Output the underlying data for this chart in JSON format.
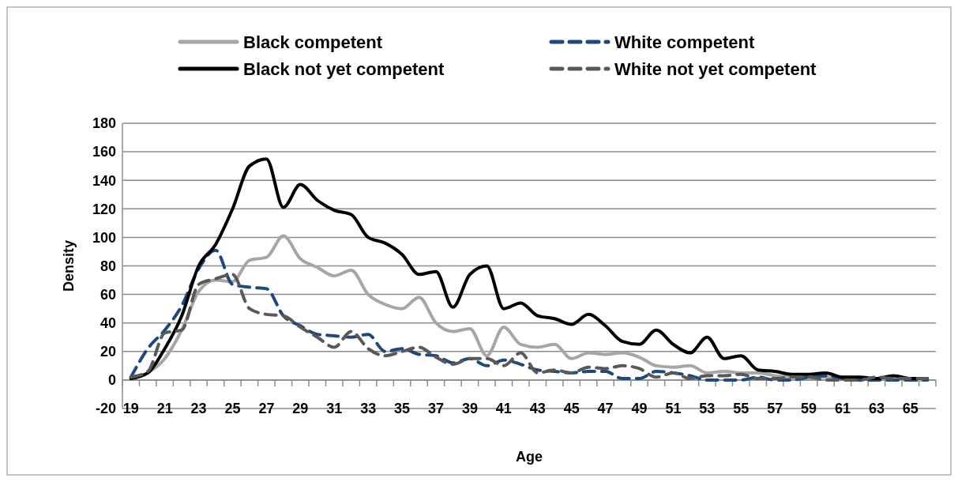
{
  "chart_data": {
    "type": "line",
    "xlabel": "Age",
    "ylabel": "Density",
    "categories": [
      "19",
      null,
      "21",
      null,
      "23",
      null,
      "25",
      null,
      "27",
      null,
      "29",
      null,
      "31",
      null,
      "33",
      null,
      "35",
      null,
      "37",
      null,
      "39",
      null,
      "41",
      null,
      "43",
      null,
      "45",
      null,
      "47",
      null,
      "49",
      null,
      "51",
      null,
      "53",
      null,
      "55",
      null,
      "57",
      null,
      "59",
      null,
      "61",
      null,
      "63",
      null,
      "65",
      null
    ],
    "series": [
      {
        "name": "Black competent",
        "color": "#a6a6a6",
        "line_style": "solid",
        "values": [
          1,
          5,
          15,
          35,
          62,
          70,
          69,
          84,
          86,
          101,
          85,
          79,
          73,
          77,
          60,
          53,
          50,
          58,
          40,
          34,
          36,
          17,
          37,
          25,
          23,
          25,
          15,
          19,
          18,
          19,
          16,
          10,
          9,
          10,
          5,
          6,
          5,
          5,
          3,
          2,
          2,
          2,
          1,
          1,
          1,
          1,
          0,
          0
        ]
      },
      {
        "name": "White competent",
        "color": "#1f497d",
        "line_style": "dashed",
        "values": [
          2,
          22,
          35,
          52,
          78,
          91,
          67,
          65,
          64,
          45,
          38,
          32,
          31,
          30,
          32,
          20,
          22,
          18,
          17,
          12,
          15,
          10,
          14,
          11,
          7,
          6,
          5,
          6,
          6,
          1,
          1,
          6,
          5,
          3,
          0,
          0,
          0,
          2,
          0,
          0,
          2,
          3,
          1,
          0,
          0,
          0,
          0,
          0
        ]
      },
      {
        "name": "Black not yet competent",
        "color": "#000000",
        "line_style": "solid",
        "values": [
          1,
          5,
          22,
          45,
          80,
          95,
          120,
          150,
          155,
          121,
          137,
          126,
          119,
          116,
          100,
          96,
          88,
          74,
          76,
          51,
          74,
          80,
          50,
          54,
          45,
          43,
          39,
          46,
          38,
          27,
          25,
          35,
          25,
          19,
          30,
          15,
          17,
          7,
          6,
          4,
          4,
          5,
          2,
          2,
          1,
          3,
          1,
          1
        ]
      },
      {
        "name": "White not yet competent",
        "color": "#595959",
        "line_style": "dashed",
        "values": [
          2,
          6,
          33,
          35,
          67,
          71,
          74,
          50,
          46,
          45,
          37,
          30,
          23,
          34,
          22,
          17,
          20,
          23,
          16,
          11,
          15,
          15,
          10,
          19,
          5,
          7,
          5,
          9,
          8,
          10,
          8,
          2,
          5,
          1,
          3,
          3,
          4,
          1,
          1,
          2,
          2,
          0,
          0,
          0,
          2,
          1,
          1,
          1
        ]
      }
    ],
    "ylim": [
      -20,
      180
    ],
    "yticks": [
      -20,
      0,
      20,
      40,
      60,
      80,
      100,
      120,
      140,
      160,
      180
    ],
    "grid": "y",
    "legend": "top"
  }
}
